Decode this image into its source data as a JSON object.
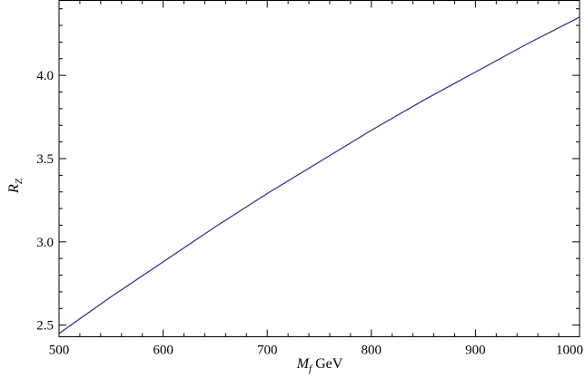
{
  "chart_data": {
    "type": "line",
    "title": "",
    "xlabel": "M_f GeV",
    "xlabel_parts": {
      "symbol": "M",
      "subscript": "f",
      "unit": " GeV"
    },
    "ylabel": "R_Z",
    "ylabel_parts": {
      "symbol": "R",
      "subscript": "Z"
    },
    "xlim": [
      500,
      1000
    ],
    "ylim": [
      2.43,
      4.45
    ],
    "x_ticks": [
      500,
      600,
      700,
      800,
      900,
      1000
    ],
    "x_tick_labels": [
      "500",
      "600",
      "700",
      "800",
      "900",
      "1000"
    ],
    "x_minor_step": 20,
    "y_ticks": [
      2.5,
      3.0,
      3.5,
      4.0
    ],
    "y_tick_labels": [
      "2.5",
      "3.0",
      "3.5",
      "4.0"
    ],
    "y_minor_step": 0.1,
    "grid": false,
    "series": [
      {
        "color": "#2b2b8c",
        "x": [
          500,
          550,
          600,
          650,
          700,
          750,
          800,
          850,
          900,
          950,
          1000
        ],
        "y": [
          2.45,
          2.67,
          2.88,
          3.09,
          3.29,
          3.48,
          3.67,
          3.85,
          4.02,
          4.19,
          4.35
        ]
      }
    ]
  }
}
